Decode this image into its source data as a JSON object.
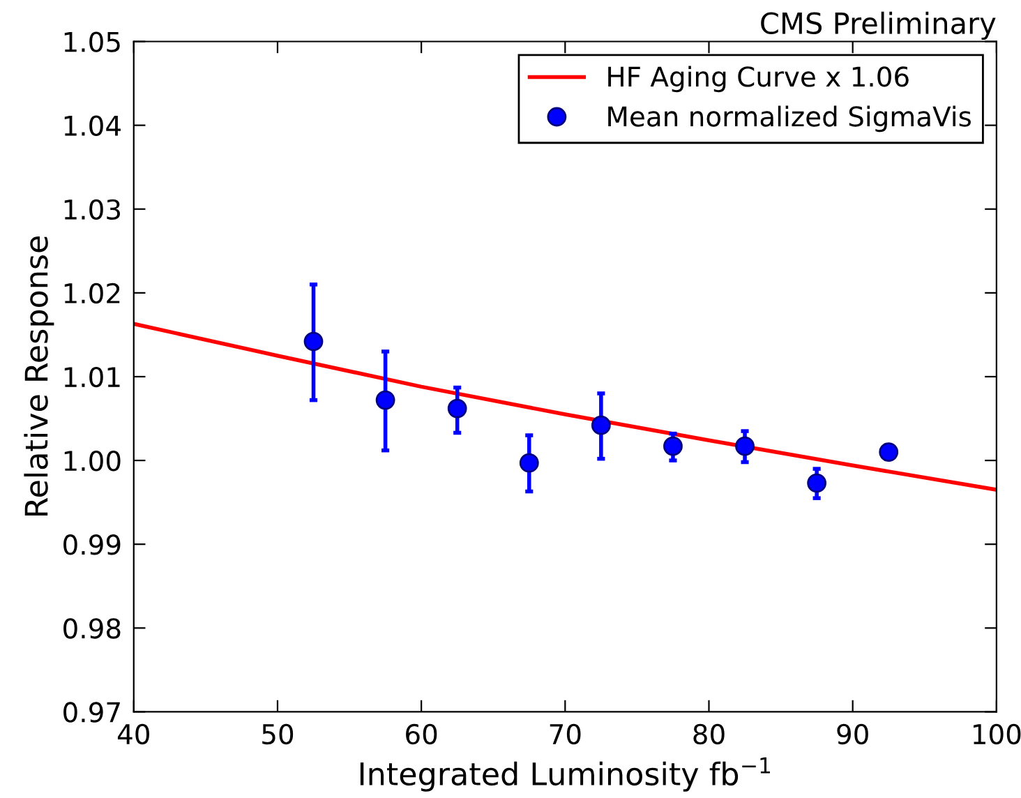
{
  "chart_data": {
    "type": "scatter",
    "title": "CMS Preliminary",
    "xlabel": "Integrated Luminosity fb$^{−1}$",
    "ylabel": "Relative Response",
    "xlim": [
      40,
      100
    ],
    "xticks": [
      40,
      50,
      60,
      70,
      80,
      90,
      100
    ],
    "ylim": [
      0.97,
      1.05
    ],
    "yticks": [
      {
        "value": 0.97,
        "label": "0.97"
      },
      {
        "value": 0.98,
        "label": "0.98"
      },
      {
        "value": 0.99,
        "label": "0.99"
      },
      {
        "value": 1.0,
        "label": "1.00"
      },
      {
        "value": 1.01,
        "label": "1.01"
      },
      {
        "value": 1.02,
        "label": "1.02"
      },
      {
        "value": 1.03,
        "label": "1.03"
      },
      {
        "value": 1.04,
        "label": "1.04"
      },
      {
        "value": 1.05,
        "label": "1.05"
      }
    ],
    "grid": false,
    "legend": "top right",
    "series": [
      {
        "name": "HF Aging Curve x 1.06",
        "type": "line",
        "color": "#ff0000",
        "marker": "none",
        "line_style": "solid",
        "x": [
          40,
          50,
          60,
          70,
          80,
          90,
          100
        ],
        "values": [
          1.0163,
          1.0125,
          1.0088,
          1.0055,
          1.0024,
          0.9994,
          0.9965
        ]
      },
      {
        "name": "Mean normalized SigmaVis",
        "color": "#0000ff",
        "marker": "circle",
        "x": [
          52.5,
          57.5,
          62.5,
          67.5,
          72.5,
          77.5,
          82.5,
          87.5,
          92.5
        ],
        "values": [
          1.0142,
          1.0072,
          1.0062,
          0.9997,
          1.0042,
          1.0017,
          1.0017,
          0.9973,
          1.001
        ],
        "errors": [
          [
            1.0072,
            1.021
          ],
          [
            1.0012,
            1.013
          ],
          [
            1.0033,
            1.0087
          ],
          [
            0.9963,
            1.003
          ],
          [
            1.0002,
            1.008
          ],
          [
            1.0,
            1.0032
          ],
          [
            0.9998,
            1.0035
          ],
          [
            0.9955,
            0.999
          ],
          [
            1.0005,
            1.0015
          ]
        ]
      }
    ]
  }
}
